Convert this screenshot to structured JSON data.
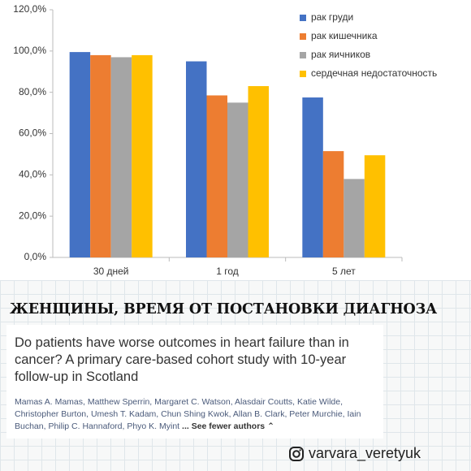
{
  "chart_data": {
    "type": "bar",
    "categories": [
      "30 дней",
      "1 год",
      "5 лет"
    ],
    "series": [
      {
        "name": "рак груди",
        "color": "#4472c4",
        "values": [
          99.5,
          95,
          77.5
        ]
      },
      {
        "name": "рак кишечника",
        "color": "#ed7d31",
        "values": [
          98,
          78.5,
          51.5
        ]
      },
      {
        "name": "рак яичников",
        "color": "#a5a5a5",
        "values": [
          97,
          75,
          38
        ]
      },
      {
        "name": "сердечная недостаточность",
        "color": "#ffc000",
        "values": [
          98,
          83,
          49.5
        ]
      }
    ],
    "ylim": [
      0,
      120
    ],
    "yticks": [
      {
        "value": 0,
        "label": "0,0%"
      },
      {
        "value": 20,
        "label": "20,0%"
      },
      {
        "value": 40,
        "label": "40,0%"
      },
      {
        "value": 60,
        "label": "60,0%"
      },
      {
        "value": 80,
        "label": "80,0%"
      },
      {
        "value": 100,
        "label": "100,0%"
      },
      {
        "value": 120,
        "label": "120,0%"
      }
    ],
    "grid": false,
    "legend": "top-right"
  },
  "heading": "ЖЕНЩИНЫ, ВРЕМЯ ОТ ПОСТАНОВКИ ДИАГНОЗА",
  "article": {
    "title": "Do patients have worse outcomes in heart failure than in cancer? A primary care-based cohort study with 10-year follow-up in Scotland",
    "authors": "Mamas A. Mamas, Matthew Sperrin, Margaret C. Watson, Alasdair Coutts, Katie Wilde, Christopher Burton, Umesh T. Kadam, Chun Shing Kwok, Allan B. Clark, Peter Murchie, Iain Buchan, Philip C. Hannaford, Phyo K. Myint",
    "more": "... See fewer authors ⌃"
  },
  "handle": "varvara_veretyuk"
}
